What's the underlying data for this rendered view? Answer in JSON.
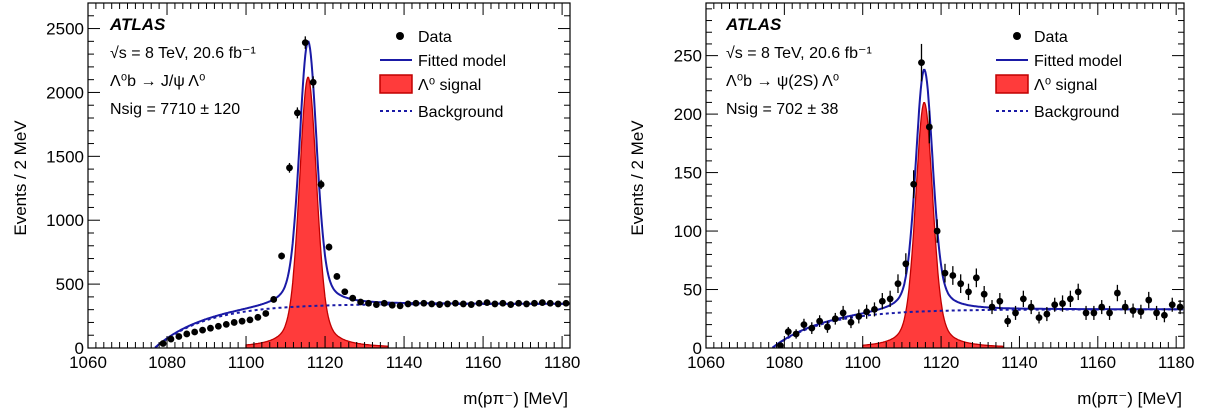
{
  "chart_data": [
    {
      "type": "scatter",
      "experiment": "ATLAS",
      "energy_line": "√s = 8 TeV, 20.6 fb⁻¹",
      "decay_line": "Λ⁰b → J/ψ Λ⁰",
      "nsig_line": "Nsig = 7710 ± 120",
      "xlabel": "m(pπ⁻) [MeV]",
      "ylabel": "Events / 2 MeV",
      "xlim": [
        1060,
        1182
      ],
      "ylim": [
        0,
        2700
      ],
      "xticks": [
        1060,
        1080,
        1100,
        1120,
        1140,
        1160,
        1180
      ],
      "yticks": [
        0,
        500,
        1000,
        1500,
        2000,
        2500
      ],
      "legend": [
        "Data",
        "Fitted model",
        "Λ⁰ signal",
        "Background"
      ],
      "legend_position": "top-right",
      "model": {
        "peak_x": 1115.7,
        "signal_height": 2120,
        "total_peak": 2400,
        "bkg_plateau": 345,
        "bkg_threshold": 1077
      },
      "series": [
        {
          "name": "Data",
          "x": [
            1079,
            1081,
            1083,
            1085,
            1087,
            1089,
            1091,
            1093,
            1095,
            1097,
            1099,
            1101,
            1103,
            1105,
            1107,
            1109,
            1111,
            1113,
            1115,
            1117,
            1119,
            1121,
            1123,
            1125,
            1127,
            1129,
            1131,
            1133,
            1135,
            1137,
            1139,
            1141,
            1143,
            1145,
            1147,
            1149,
            1151,
            1153,
            1155,
            1157,
            1159,
            1161,
            1163,
            1165,
            1167,
            1169,
            1171,
            1173,
            1175,
            1177,
            1179,
            1181
          ],
          "y": [
            35,
            70,
            90,
            110,
            125,
            140,
            155,
            170,
            185,
            200,
            210,
            220,
            240,
            270,
            380,
            720,
            1410,
            1840,
            2390,
            2080,
            1280,
            790,
            560,
            440,
            390,
            360,
            350,
            340,
            350,
            335,
            330,
            345,
            350,
            350,
            345,
            340,
            345,
            350,
            345,
            340,
            350,
            355,
            345,
            350,
            340,
            350,
            345,
            350,
            355,
            350,
            345,
            350
          ],
          "err": [
            6,
            8,
            10,
            11,
            11,
            12,
            12,
            13,
            14,
            14,
            14,
            15,
            16,
            16,
            19,
            27,
            38,
            43,
            49,
            46,
            36,
            28,
            24,
            21,
            20,
            19,
            19,
            18,
            19,
            18,
            18,
            19,
            19,
            19,
            19,
            18,
            19,
            19,
            19,
            18,
            19,
            19,
            19,
            19,
            18,
            19,
            19,
            19,
            19,
            19,
            19,
            19
          ]
        }
      ]
    },
    {
      "type": "scatter",
      "experiment": "ATLAS",
      "energy_line": "√s = 8 TeV, 20.6 fb⁻¹",
      "decay_line": "Λ⁰b → ψ(2S) Λ⁰",
      "nsig_line": "Nsig = 702 ± 38",
      "xlabel": "m(pπ⁻) [MeV]",
      "ylabel": "Events / 2 MeV",
      "xlim": [
        1060,
        1182
      ],
      "ylim": [
        0,
        295
      ],
      "xticks": [
        1060,
        1080,
        1100,
        1120,
        1140,
        1160,
        1180
      ],
      "yticks": [
        0,
        50,
        100,
        150,
        200,
        250
      ],
      "legend": [
        "Data",
        "Fitted model",
        "Λ⁰ signal",
        "Background"
      ],
      "legend_position": "top-right",
      "model": {
        "peak_x": 1115.7,
        "signal_height": 210,
        "total_peak": 238,
        "bkg_plateau": 33,
        "bkg_threshold": 1077
      },
      "series": [
        {
          "name": "Data",
          "x": [
            1079,
            1081,
            1083,
            1085,
            1087,
            1089,
            1091,
            1093,
            1095,
            1097,
            1099,
            1101,
            1103,
            1105,
            1107,
            1109,
            1111,
            1113,
            1115,
            1117,
            1119,
            1121,
            1123,
            1125,
            1127,
            1129,
            1131,
            1133,
            1135,
            1137,
            1139,
            1141,
            1143,
            1145,
            1147,
            1149,
            1151,
            1153,
            1155,
            1157,
            1159,
            1161,
            1163,
            1165,
            1167,
            1169,
            1171,
            1173,
            1175,
            1177,
            1179,
            1181
          ],
          "y": [
            2,
            14,
            12,
            20,
            17,
            23,
            18,
            25,
            30,
            22,
            27,
            31,
            33,
            40,
            42,
            55,
            72,
            140,
            244,
            189,
            100,
            64,
            62,
            55,
            48,
            60,
            46,
            35,
            40,
            23,
            30,
            42,
            35,
            26,
            29,
            37,
            38,
            42,
            48,
            30,
            30,
            35,
            30,
            47,
            35,
            32,
            31,
            41,
            30,
            28,
            37,
            35
          ],
          "err": [
            2,
            4,
            4,
            5,
            5,
            5,
            5,
            5,
            6,
            5,
            6,
            6,
            6,
            7,
            7,
            8,
            9,
            12,
            16,
            14,
            10,
            8,
            8,
            8,
            7,
            8,
            7,
            6,
            7,
            5,
            6,
            7,
            6,
            5,
            6,
            6,
            7,
            7,
            7,
            6,
            6,
            6,
            6,
            7,
            6,
            6,
            6,
            7,
            6,
            6,
            6,
            6
          ]
        }
      ]
    }
  ]
}
